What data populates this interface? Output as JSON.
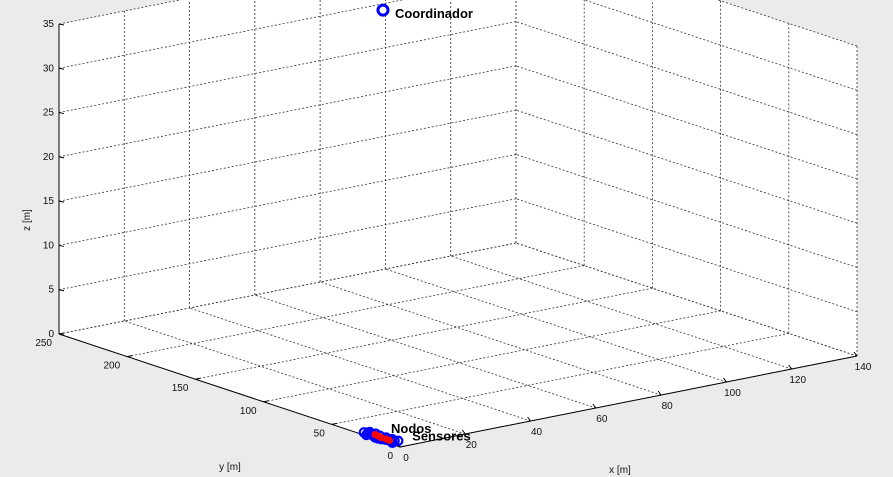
{
  "chart_data": {
    "type": "scatter3d",
    "title": "",
    "xlabel": "x [m]",
    "ylabel": "y [m]",
    "zlabel": "z [m]",
    "xlim": [
      0,
      140
    ],
    "ylim": [
      0,
      250
    ],
    "zlim": [
      0,
      35
    ],
    "xticks": [
      "0",
      "20",
      "40",
      "60",
      "80",
      "100",
      "120",
      "140"
    ],
    "yticks": [
      "0",
      "50",
      "100",
      "150",
      "200",
      "250"
    ],
    "zticks": [
      "0",
      "5",
      "10",
      "15",
      "20",
      "25",
      "30",
      "35"
    ],
    "grid": true,
    "colors": {
      "coordinator": "#0000ff",
      "nodes": "#0000ff",
      "sensors": "#ff0000"
    },
    "series": [
      {
        "name": "Coordinador",
        "points": [
          {
            "x": 70,
            "y": 180,
            "z": 35
          }
        ]
      },
      {
        "name": "Nodos",
        "points": [
          {
            "x": 1.0,
            "y": 8,
            "z": 0
          },
          {
            "x": 1.5,
            "y": 10,
            "z": 0
          },
          {
            "x": 2.0,
            "y": 12,
            "z": 0
          },
          {
            "x": 1.5,
            "y": 14,
            "z": 0
          },
          {
            "x": 1.0,
            "y": 16,
            "z": 0
          },
          {
            "x": 0.8,
            "y": 18,
            "z": 0
          },
          {
            "x": 0.8,
            "y": 20,
            "z": 0
          },
          {
            "x": 1.2,
            "y": 22,
            "z": 0
          },
          {
            "x": 1.8,
            "y": 24,
            "z": 0
          },
          {
            "x": 2.2,
            "y": 26,
            "z": 0
          },
          {
            "x": 2.0,
            "y": 28,
            "z": 0
          },
          {
            "x": 1.5,
            "y": 30,
            "z": 0
          },
          {
            "x": 2.5,
            "y": 10,
            "z": 0
          },
          {
            "x": 3.0,
            "y": 13,
            "z": 0
          },
          {
            "x": 2.8,
            "y": 17,
            "z": 0
          },
          {
            "x": 2.6,
            "y": 21,
            "z": 0
          },
          {
            "x": 3.0,
            "y": 25,
            "z": 0
          },
          {
            "x": 2.8,
            "y": 29,
            "z": 0
          },
          {
            "x": 3.2,
            "y": 9,
            "z": 0
          },
          {
            "x": 0.6,
            "y": 26,
            "z": 0
          }
        ]
      },
      {
        "name": "Sensores",
        "points": [
          {
            "x": 1.8,
            "y": 12,
            "z": 0
          },
          {
            "x": 2.0,
            "y": 15,
            "z": 0
          },
          {
            "x": 1.8,
            "y": 18,
            "z": 0
          },
          {
            "x": 2.2,
            "y": 21,
            "z": 0
          },
          {
            "x": 2.4,
            "y": 24,
            "z": 0
          }
        ]
      }
    ],
    "annotations": [
      {
        "text": "Coordinador",
        "series": "Coordinador"
      },
      {
        "text": "Nodos",
        "series": "Nodos"
      },
      {
        "text": "Sensores",
        "series": "Sensores"
      }
    ]
  }
}
